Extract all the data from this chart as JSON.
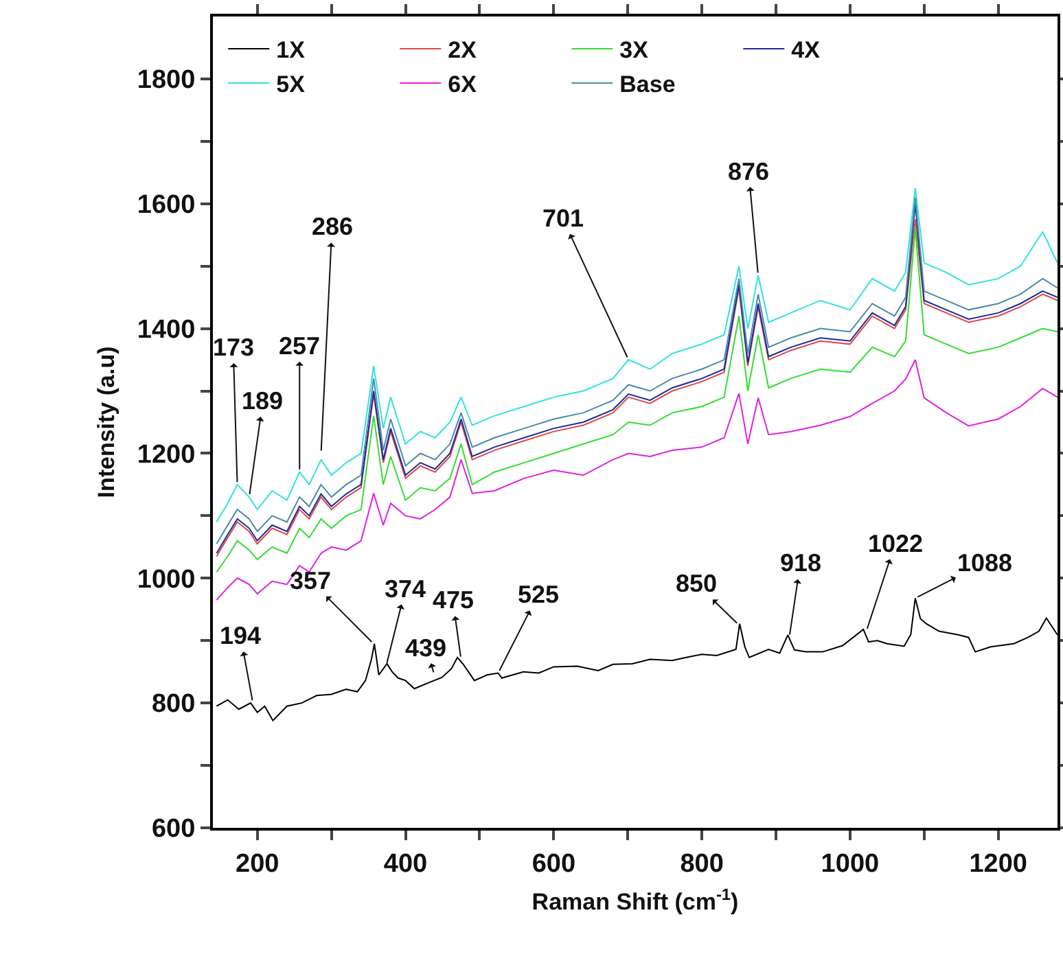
{
  "chart_data": {
    "type": "line",
    "xlabel": "Raman Shift (cm$^{-1}$)",
    "ylabel": "Intensity (a.u)",
    "xlim": [
      140,
      1280
    ],
    "ylim": [
      600,
      1900
    ],
    "xticks": [
      200,
      {
        "value": 300,
        "label": null
      },
      400,
      {
        "value": 500,
        "label": null
      },
      600,
      {
        "value": 700,
        "label": null
      },
      800,
      {
        "value": 900,
        "label": null
      },
      1000,
      {
        "value": 1100,
        "label": null
      },
      1200
    ],
    "yticks": [
      600,
      {
        "value": 700,
        "label": null
      },
      800,
      {
        "value": 900,
        "label": null
      },
      1000,
      {
        "value": 1100,
        "label": null
      },
      1200,
      {
        "value": 1300,
        "label": null
      },
      1400,
      {
        "value": 1500,
        "label": null
      },
      1600,
      {
        "value": 1700,
        "label": null
      },
      1800
    ],
    "grid": false,
    "legend": "top left",
    "x": [
      145,
      160,
      173,
      189,
      200,
      220,
      240,
      257,
      270,
      286,
      300,
      320,
      340,
      357,
      370,
      380,
      400,
      420,
      440,
      460,
      475,
      490,
      520,
      560,
      600,
      640,
      680,
      701,
      730,
      760,
      800,
      830,
      850,
      862,
      876,
      890,
      920,
      960,
      1000,
      1030,
      1060,
      1075,
      1088,
      1100,
      1130,
      1160,
      1200,
      1230,
      1260,
      1280
    ],
    "series": [
      {
        "name": "1X",
        "color": "#000000",
        "x": [
          145,
          160,
          175,
          191,
          200,
          210,
          221,
          240,
          260,
          280,
          300,
          320,
          335,
          346,
          354,
          358,
          364,
          375,
          382,
          390,
          400,
          412,
          430,
          449,
          462,
          470,
          478,
          493,
          510,
          525,
          530,
          559,
          580,
          600,
          632,
          660,
          680,
          706,
          730,
          760,
          779,
          800,
          820,
          846,
          851,
          858,
          864,
          890,
          905,
          916,
          925,
          940,
          963,
          990,
          1018,
          1025,
          1037,
          1050,
          1073,
          1082,
          1088,
          1095,
          1103,
          1120,
          1147,
          1160,
          1169,
          1190,
          1221,
          1240,
          1255,
          1265,
          1280
        ],
        "values": [
          795,
          805,
          790,
          800,
          785,
          795,
          772,
          795,
          800,
          812,
          814,
          822,
          818,
          836,
          870,
          895,
          845,
          863,
          850,
          840,
          836,
          823,
          832,
          841,
          855,
          873,
          862,
          836,
          845,
          848,
          840,
          850,
          848,
          858,
          859,
          852,
          862,
          863,
          870,
          868,
          873,
          878,
          876,
          886,
          927,
          890,
          873,
          886,
          880,
          909,
          885,
          882,
          882,
          892,
          918,
          898,
          900,
          895,
          891,
          910,
          968,
          935,
          927,
          915,
          909,
          905,
          882,
          890,
          895,
          905,
          915,
          936,
          909
        ]
      },
      {
        "name": "2X",
        "color": "#e04848",
        "values": [
          1035,
          1065,
          1090,
          1075,
          1055,
          1080,
          1070,
          1110,
          1095,
          1130,
          1110,
          1130,
          1145,
          1295,
          1185,
          1235,
          1160,
          1180,
          1170,
          1195,
          1250,
          1190,
          1205,
          1220,
          1235,
          1245,
          1265,
          1290,
          1280,
          1300,
          1315,
          1330,
          1465,
          1340,
          1435,
          1350,
          1365,
          1380,
          1375,
          1420,
          1400,
          1430,
          1575,
          1440,
          1425,
          1410,
          1420,
          1435,
          1455,
          1445
        ]
      },
      {
        "name": "3X",
        "color": "#33dd33",
        "values": [
          1010,
          1035,
          1060,
          1045,
          1030,
          1050,
          1040,
          1080,
          1065,
          1095,
          1080,
          1100,
          1110,
          1260,
          1150,
          1195,
          1125,
          1145,
          1140,
          1160,
          1215,
          1150,
          1170,
          1185,
          1200,
          1215,
          1230,
          1250,
          1245,
          1265,
          1275,
          1290,
          1420,
          1300,
          1390,
          1305,
          1320,
          1335,
          1330,
          1370,
          1355,
          1380,
          1560,
          1390,
          1375,
          1360,
          1370,
          1385,
          1400,
          1395
        ]
      },
      {
        "name": "4X",
        "color": "#1a2b9c",
        "values": [
          1040,
          1070,
          1095,
          1080,
          1060,
          1085,
          1075,
          1115,
          1100,
          1135,
          1115,
          1135,
          1150,
          1300,
          1190,
          1240,
          1165,
          1185,
          1175,
          1200,
          1255,
          1195,
          1210,
          1225,
          1240,
          1250,
          1270,
          1295,
          1285,
          1305,
          1320,
          1335,
          1470,
          1345,
          1440,
          1355,
          1370,
          1385,
          1380,
          1425,
          1405,
          1435,
          1600,
          1445,
          1430,
          1415,
          1425,
          1440,
          1460,
          1450
        ]
      },
      {
        "name": "5X",
        "color": "#33e0e0",
        "values": [
          1090,
          1120,
          1150,
          1130,
          1110,
          1140,
          1125,
          1170,
          1150,
          1190,
          1165,
          1185,
          1200,
          1340,
          1240,
          1290,
          1215,
          1235,
          1225,
          1250,
          1290,
          1245,
          1260,
          1275,
          1290,
          1300,
          1320,
          1350,
          1335,
          1360,
          1375,
          1390,
          1500,
          1400,
          1485,
          1410,
          1425,
          1445,
          1430,
          1480,
          1460,
          1490,
          1625,
          1505,
          1490,
          1470,
          1480,
          1500,
          1555,
          1505
        ]
      },
      {
        "name": "6X",
        "color": "#e020e0",
        "values": [
          965,
          985,
          1000,
          990,
          975,
          995,
          990,
          1020,
          1010,
          1040,
          1050,
          1045,
          1060,
          1136,
          1085,
          1120,
          1100,
          1095,
          1110,
          1130,
          1190,
          1136,
          1140,
          1160,
          1173,
          1165,
          1190,
          1200,
          1195,
          1205,
          1210,
          1225,
          1296,
          1215,
          1289,
          1230,
          1235,
          1245,
          1259,
          1280,
          1300,
          1319,
          1350,
          1289,
          1265,
          1244,
          1255,
          1275,
          1304,
          1290
        ]
      },
      {
        "name": "Base",
        "color": "#4a8aa8",
        "values": [
          1055,
          1085,
          1110,
          1095,
          1075,
          1100,
          1090,
          1130,
          1115,
          1150,
          1130,
          1150,
          1165,
          1320,
          1205,
          1255,
          1180,
          1200,
          1190,
          1215,
          1265,
          1210,
          1225,
          1240,
          1255,
          1265,
          1285,
          1310,
          1300,
          1320,
          1335,
          1350,
          1480,
          1360,
          1455,
          1370,
          1385,
          1400,
          1395,
          1440,
          1420,
          1450,
          1610,
          1460,
          1445,
          1430,
          1440,
          1455,
          1480,
          1465
        ]
      }
    ],
    "annotations": [
      {
        "text": "173",
        "x": 173,
        "y": 1150
      },
      {
        "text": "189",
        "x": 189,
        "y": 1130
      },
      {
        "text": "257",
        "x": 257,
        "y": 1170
      },
      {
        "text": "286",
        "x": 286,
        "y": 1200
      },
      {
        "text": "701",
        "x": 701,
        "y": 1350
      },
      {
        "text": "876",
        "x": 876,
        "y": 1485
      },
      {
        "text": "194",
        "x": 194,
        "y": 800
      },
      {
        "text": "357",
        "x": 357,
        "y": 895
      },
      {
        "text": "374",
        "x": 374,
        "y": 860
      },
      {
        "text": "439",
        "x": 439,
        "y": 845
      },
      {
        "text": "475",
        "x": 475,
        "y": 870
      },
      {
        "text": "525",
        "x": 525,
        "y": 848
      },
      {
        "text": "850",
        "x": 850,
        "y": 925
      },
      {
        "text": "918",
        "x": 918,
        "y": 905
      },
      {
        "text": "1022",
        "x": 1022,
        "y": 915
      },
      {
        "text": "1088",
        "x": 1088,
        "y": 968
      }
    ]
  }
}
